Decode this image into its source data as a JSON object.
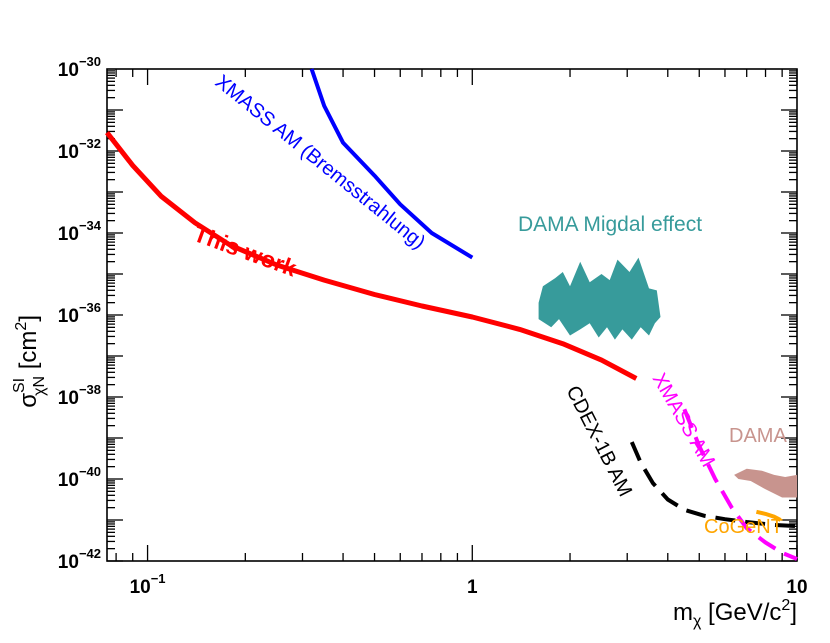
{
  "chart_data": {
    "type": "line",
    "xscale": "log",
    "yscale": "log",
    "xlim": [
      0.075,
      10
    ],
    "ylim": [
      1e-42,
      1e-30
    ],
    "xlabel": {
      "base": "m",
      "sub": "χ",
      "unit_open": " [GeV/c",
      "unit_sup": "2",
      "unit_close": "]"
    },
    "ylabel": {
      "base": "σ",
      "sup": "SI",
      "sub": "χN",
      "unit_open": " [cm",
      "unit_sup": "2",
      "unit_close": "]"
    },
    "x_ticks": [
      {
        "value": 0.1,
        "base": "10",
        "exp": "−1"
      },
      {
        "value": 1,
        "base": "1",
        "exp": ""
      },
      {
        "value": 10,
        "base": "10",
        "exp": ""
      }
    ],
    "y_ticks": [
      {
        "exp_value": -30,
        "base": "10",
        "exp": "−30"
      },
      {
        "exp_value": -32,
        "base": "10",
        "exp": "−32"
      },
      {
        "exp_value": -34,
        "base": "10",
        "exp": "−34"
      },
      {
        "exp_value": -36,
        "base": "10",
        "exp": "−36"
      },
      {
        "exp_value": -38,
        "base": "10",
        "exp": "−38"
      },
      {
        "exp_value": -40,
        "base": "10",
        "exp": "−40"
      },
      {
        "exp_value": -42,
        "base": "10",
        "exp": "−42"
      }
    ],
    "series": [
      {
        "name": "This work",
        "color": "#ff0000",
        "style": "solid",
        "width": 5,
        "x": [
          0.075,
          0.09,
          0.11,
          0.14,
          0.18,
          0.25,
          0.35,
          0.5,
          0.7,
          1.0,
          1.4,
          1.9,
          2.5,
          3.2
        ],
        "y": [
          -31.55,
          -32.35,
          -33.1,
          -33.75,
          -34.3,
          -34.78,
          -35.15,
          -35.5,
          -35.78,
          -36.05,
          -36.35,
          -36.7,
          -37.1,
          -37.55
        ]
      },
      {
        "name": "XMASS AM (Bremsstrahlung)",
        "color": "#0000ff",
        "style": "solid",
        "width": 4,
        "x": [
          0.32,
          0.35,
          0.4,
          0.5,
          0.6,
          0.75,
          1.0
        ],
        "y": [
          -30.0,
          -30.9,
          -31.8,
          -32.6,
          -33.3,
          -34.0,
          -34.6
        ]
      },
      {
        "name": "CDEX-1B AM",
        "color": "#000000",
        "style": "dashed",
        "width": 4,
        "x": [
          3.1,
          3.3,
          3.6,
          4.0,
          4.5,
          5.2,
          6.0,
          7.0,
          8.5,
          10
        ],
        "y": [
          -39.1,
          -39.6,
          -40.1,
          -40.5,
          -40.75,
          -40.9,
          -40.98,
          -41.05,
          -41.12,
          -41.15
        ]
      },
      {
        "name": "XMASS AM",
        "color": "#ff00ff",
        "style": "dashed",
        "width": 4,
        "x": [
          4.5,
          5.0,
          5.6,
          6.3,
          7.0,
          8.0,
          9.0,
          10
        ],
        "y": [
          -38.3,
          -39.2,
          -40.0,
          -40.7,
          -41.2,
          -41.55,
          -41.8,
          -41.95
        ]
      },
      {
        "name": "CoGeNT",
        "color": "#ffa500",
        "style": "solid",
        "width": 4,
        "x": [
          7.5,
          8.0,
          8.5,
          8.9
        ],
        "y": [
          -40.8,
          -40.85,
          -40.92,
          -41.0
        ]
      }
    ],
    "regions": [
      {
        "name": "DAMA Migdal effect",
        "color": "#379b9b",
        "x": [
          1.6,
          1.65,
          1.8,
          1.9,
          2.0,
          2.15,
          2.3,
          2.5,
          2.65,
          2.8,
          3.05,
          3.25,
          3.5,
          3.7,
          3.8,
          3.65,
          3.5,
          3.3,
          3.1,
          2.9,
          2.75,
          2.6,
          2.45,
          2.3,
          2.15,
          2.0,
          1.85,
          1.75,
          1.6
        ],
        "y": [
          -35.7,
          -35.3,
          -35.1,
          -34.95,
          -35.3,
          -34.7,
          -35.2,
          -35.0,
          -35.15,
          -34.65,
          -34.95,
          -34.6,
          -35.35,
          -35.4,
          -36.05,
          -36.2,
          -36.5,
          -36.3,
          -36.6,
          -36.35,
          -36.6,
          -36.3,
          -36.55,
          -36.2,
          -36.35,
          -36.5,
          -36.1,
          -36.3,
          -36.1
        ]
      },
      {
        "name": "DAMA",
        "color": "#c8948e",
        "x": [
          6.4,
          7.0,
          7.8,
          8.5,
          9.2,
          10,
          10,
          9.0,
          8.0,
          7.2,
          6.6
        ],
        "y": [
          -39.9,
          -39.75,
          -39.8,
          -39.9,
          -39.95,
          -39.9,
          -40.45,
          -40.45,
          -40.25,
          -40.05,
          -40.0
        ]
      }
    ],
    "annotations": [
      {
        "text": "This work",
        "color": "#ff0000",
        "bold": true
      },
      {
        "text": "XMASS AM (Bremsstrahlung)",
        "color": "#0000ff",
        "bold": false
      },
      {
        "text": "DAMA Migdal effect",
        "color": "#379b9b",
        "bold": false
      },
      {
        "text": "CDEX-1B AM",
        "color": "#000000",
        "bold": false
      },
      {
        "text": "XMASS AM",
        "color": "#ff00ff",
        "bold": false
      },
      {
        "text": "DAMA",
        "color": "#c8948e",
        "bold": false
      },
      {
        "text": "CoGeNT",
        "color": "#ffa500",
        "bold": false
      }
    ]
  }
}
